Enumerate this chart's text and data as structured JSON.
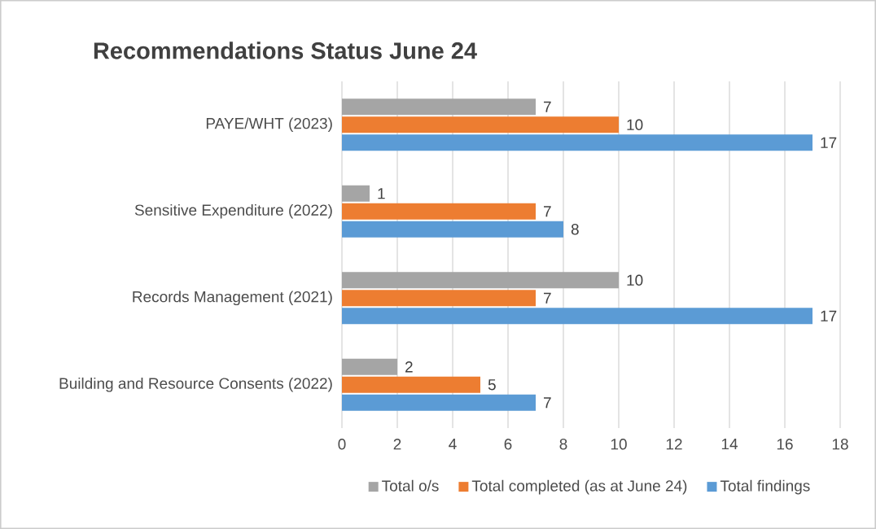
{
  "chart_data": {
    "type": "bar",
    "orientation": "horizontal",
    "title": "Recommendations Status June 24",
    "categories": [
      "PAYE/WHT (2023)",
      "Sensitive Expenditure (2022)",
      "Records Management (2021)",
      "Building and Resource Consents (2022)"
    ],
    "series": [
      {
        "name": "Total o/s",
        "color": "#a5a5a5",
        "values": [
          7,
          1,
          10,
          2
        ]
      },
      {
        "name": "Total completed (as at June 24)",
        "color": "#ed7d31",
        "values": [
          10,
          7,
          7,
          5
        ]
      },
      {
        "name": "Total findings",
        "color": "#5b9bd5",
        "values": [
          17,
          8,
          17,
          7
        ]
      }
    ],
    "xlim": [
      0,
      18
    ],
    "xticks": [
      0,
      2,
      4,
      6,
      8,
      10,
      12,
      14,
      16,
      18
    ],
    "grid": "x",
    "legend": "bottom",
    "data_labels": true
  }
}
